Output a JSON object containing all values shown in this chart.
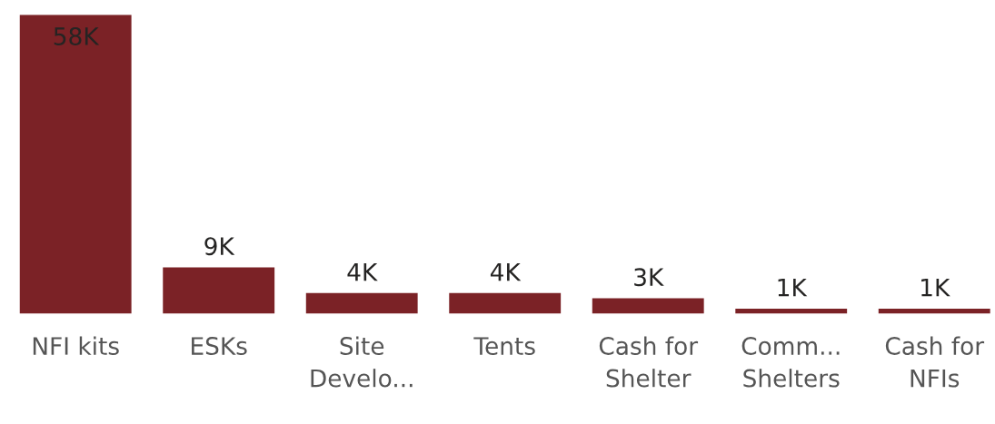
{
  "chart_data": {
    "type": "bar",
    "categories": [
      "NFI kits",
      "ESKs",
      "Site Develo...",
      "Tents",
      "Cash for Shelter",
      "Comm... Shelters",
      "Cash for NFIs"
    ],
    "values": [
      58000,
      9000,
      4000,
      4000,
      3000,
      1000,
      1000
    ],
    "value_labels": [
      "58K",
      "9K",
      "4K",
      "4K",
      "3K",
      "1K",
      "1K"
    ],
    "color": "#7b2226"
  }
}
